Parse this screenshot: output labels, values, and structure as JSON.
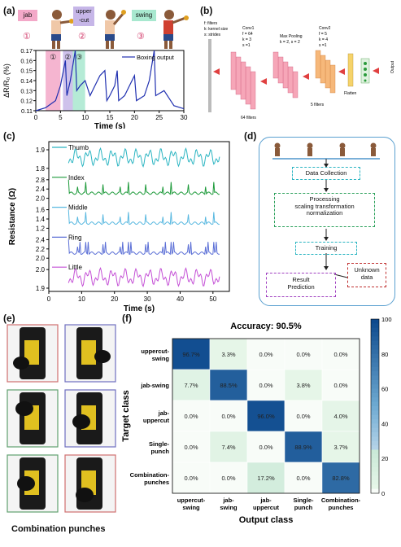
{
  "panels": {
    "a": "(a)",
    "b": "(b)",
    "c": "(c)",
    "d": "(d)",
    "e": "(e)",
    "f": "(f)"
  },
  "panel_a": {
    "moves": [
      {
        "label": "jab",
        "num": "①",
        "color": "#f3a8c8"
      },
      {
        "label": "upper\n-cut",
        "num": "②",
        "color": "#c6b6e8"
      },
      {
        "label": "swing",
        "num": "③",
        "color": "#a8e8cf"
      }
    ],
    "nums": [
      "①",
      "②",
      "③"
    ]
  },
  "panel_b": {
    "legend": [
      "f: filters",
      "k: kernel size",
      "s: strides"
    ],
    "conv1": [
      "Conv1",
      "f = 64",
      "k = 3",
      "s =1"
    ],
    "pool": [
      "Max Pooling",
      "k = 2, s = 2"
    ],
    "conv2": [
      "Conv2",
      "f = 5",
      "k = 4",
      "s =1"
    ],
    "filters1": "64 filters",
    "filters2": "5  filters",
    "flatten": "Flatten",
    "output": "Output"
  },
  "panel_d": {
    "data_collection": "Data Collection",
    "processing": [
      "Processing",
      "scaling transformation",
      "normalization"
    ],
    "training": "Training",
    "result": [
      "Result",
      "Prediction"
    ],
    "unknown": [
      "Unknown",
      "data"
    ]
  },
  "panel_e": {
    "caption": "Combination punches"
  },
  "chart_data": [
    {
      "type": "line",
      "series": [
        {
          "name": "Boxing output",
          "points": [
            [
              0,
              0.11
            ],
            [
              2,
              0.113
            ],
            [
              4,
              0.12
            ],
            [
              5,
              0.135
            ],
            [
              6,
              0.16
            ],
            [
              6.3,
              0.125
            ],
            [
              7,
              0.14
            ],
            [
              8,
              0.17
            ],
            [
              8.3,
              0.13
            ],
            [
              9,
              0.135
            ],
            [
              10,
              0.14
            ],
            [
              11,
              0.125
            ],
            [
              12,
              0.135
            ],
            [
              13,
              0.145
            ],
            [
              14,
              0.15
            ],
            [
              14.4,
              0.12
            ],
            [
              15,
              0.125
            ],
            [
              16,
              0.135
            ],
            [
              16.5,
              0.15
            ],
            [
              16.8,
              0.12
            ],
            [
              18,
              0.125
            ],
            [
              19,
              0.135
            ],
            [
              20,
              0.145
            ],
            [
              20.4,
              0.12
            ],
            [
              22,
              0.125
            ],
            [
              23,
              0.14
            ],
            [
              24,
              0.17
            ],
            [
              24.3,
              0.125
            ],
            [
              26,
              0.13
            ],
            [
              28,
              0.115
            ],
            [
              30,
              0.112
            ]
          ]
        }
      ],
      "xlabel": "Time (s)",
      "ylabel": "ΔR/R₀ (%)",
      "xlim": [
        0,
        30
      ],
      "ylim": [
        0.11,
        0.17
      ],
      "xticks": [
        0,
        5,
        10,
        15,
        20,
        25,
        30
      ],
      "yticks": [
        0.11,
        0.12,
        0.13,
        0.14,
        0.15,
        0.16,
        0.17
      ],
      "bands": [
        {
          "from": 2,
          "to": 5,
          "color": "#f3a8c8"
        },
        {
          "from": 5.5,
          "to": 7.5,
          "color": "#c6b6e8"
        },
        {
          "from": 7.5,
          "to": 10,
          "color": "#a8e8cf"
        }
      ],
      "legend": "top-right"
    },
    {
      "type": "line",
      "xlabel": "Time (s)",
      "ylabel": "Resistance (Ω)",
      "xlim": [
        0,
        55
      ],
      "xticks": [
        0,
        10,
        20,
        30,
        40,
        50
      ],
      "series": [
        {
          "name": "Thumb",
          "color": "#2bb5c2",
          "yticks": [
            "1.9",
            "1.8"
          ],
          "base": 1.82,
          "amp": 0.06,
          "kind": "smooth"
        },
        {
          "name": "Index",
          "color": "#1d9a3a",
          "yticks": [
            "2.8",
            "2.4",
            "2.0"
          ],
          "base": 2.1,
          "amp": 0.55,
          "kind": "spike"
        },
        {
          "name": "Middle",
          "color": "#58b8e0",
          "yticks": [
            "1.6",
            "1.4",
            "1.2"
          ],
          "base": 1.25,
          "amp": 0.3,
          "kind": "spike"
        },
        {
          "name": "Ring",
          "color": "#5b6fd6",
          "yticks": [
            "2.4",
            "2.2",
            "2.0"
          ],
          "base": 2.1,
          "amp": 0.25,
          "kind": "double"
        },
        {
          "name": "Little",
          "color": "#c44fd6",
          "yticks": [
            "2.0",
            "1.9"
          ],
          "base": 1.92,
          "amp": 0.08,
          "kind": "smooth"
        }
      ]
    },
    {
      "type": "heatmap",
      "title": "Accuracy: 90.5%",
      "xlabel": "Output class",
      "ylabel": "Target class",
      "rows": [
        "uppercut-\nswing",
        "jab-swing",
        "jab-\nuppercut",
        "Single-\npunch",
        "Combination-\npunches"
      ],
      "cols": [
        "uppercut-\nswing",
        "jab-\nswing",
        "jab-\nuppercut",
        "Single-\npunch",
        "Combination-\npunches"
      ],
      "values": [
        [
          96.7,
          3.3,
          0.0,
          0.0,
          0.0
        ],
        [
          7.7,
          88.5,
          0.0,
          3.8,
          0.0
        ],
        [
          0.0,
          0.0,
          96.0,
          0.0,
          4.0
        ],
        [
          0.0,
          7.4,
          0.0,
          88.9,
          3.7
        ],
        [
          0.0,
          0.0,
          17.2,
          0.0,
          82.8
        ]
      ],
      "colorbar": [
        0,
        20,
        40,
        60,
        80,
        100
      ]
    }
  ]
}
